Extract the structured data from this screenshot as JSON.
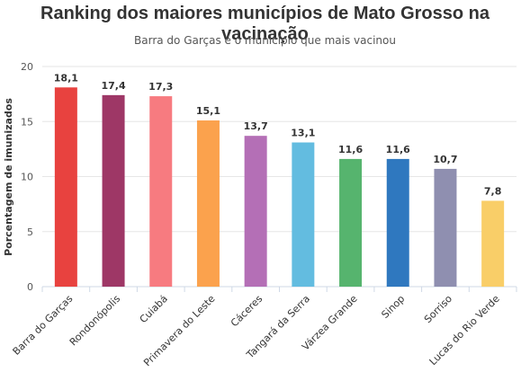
{
  "chart_data": {
    "type": "bar",
    "title": "Ranking dos maiores municípios de Mato Grosso na vacinação",
    "subtitle": "Barra do Garças é o município que mais vacinou",
    "xlabel": "",
    "ylabel": "Porcentagem de imunizados",
    "ylim": [
      0,
      20
    ],
    "yticks": [
      0,
      5,
      10,
      15,
      20
    ],
    "grid": true,
    "categories": [
      "Barra do Garças",
      "Rondonópolis",
      "Cuiabá",
      "Primavera do Leste",
      "Cáceres",
      "Tangará da Serra",
      "Várzea Grande",
      "Sinop",
      "Sorriso",
      "Lucas do Rio Verde"
    ],
    "values": [
      18.1,
      17.4,
      17.3,
      15.1,
      13.7,
      13.1,
      11.6,
      11.6,
      10.7,
      7.8
    ],
    "value_labels": [
      "18,1",
      "17,4",
      "17,3",
      "15,1",
      "13,7",
      "13,1",
      "11,6",
      "11,6",
      "10,7",
      "7,8"
    ],
    "colors": [
      "#E8423F",
      "#9E3766",
      "#F77B80",
      "#FBA24D",
      "#B46FB6",
      "#63BCE0",
      "#56B46E",
      "#2F78BF",
      "#8F8FB0",
      "#F9CE68"
    ]
  }
}
